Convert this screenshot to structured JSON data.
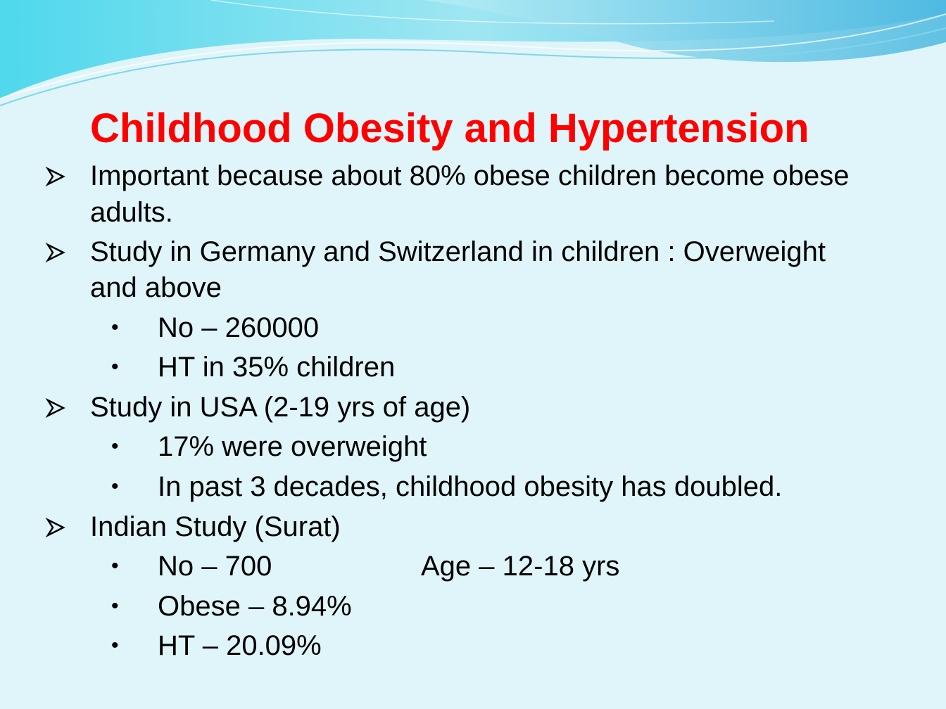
{
  "slide": {
    "title": "Childhood Obesity and Hypertension",
    "bullets": [
      {
        "line1": "Important because about 80% obese children become obese",
        "line2": "adults."
      },
      {
        "line1": "Study in Germany and Switzerland in children : Overweight",
        "line2": "and above",
        "subs": [
          "No – 260000",
          "HT in 35% children"
        ]
      },
      {
        "line1": "Study in USA (2-19 yrs of age)",
        "subs": [
          "17% were overweight",
          "In past 3 decades, childhood obesity has doubled."
        ]
      },
      {
        "line1": "Indian Study (Surat)",
        "subs": [
          "No – 700",
          "Obese – 8.94%",
          "HT – 20.09%"
        ],
        "extra": "Age – 12-18 yrs"
      }
    ],
    "bullet_glyph": "•",
    "colors": {
      "title": "#ff0000",
      "background": "#dff5f9",
      "wave": "#5fcde6"
    }
  }
}
